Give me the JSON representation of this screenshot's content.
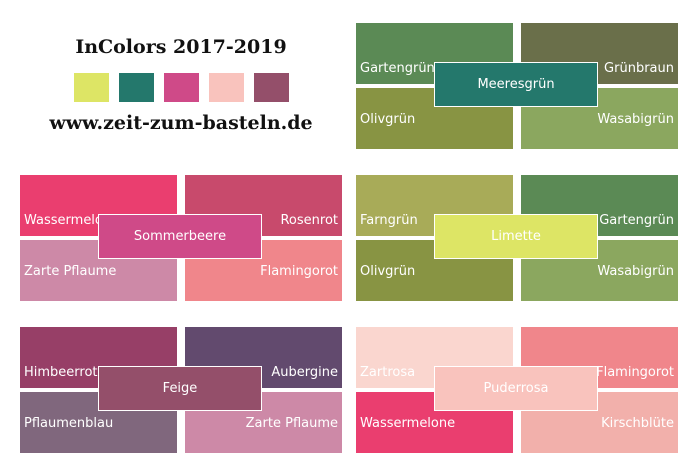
{
  "header": {
    "title": "InColors 2017-2019",
    "url": "www.zeit-zum-basteln.de",
    "swatches": [
      "#dde565",
      "#24786c",
      "#cf4a88",
      "#f9c3bd",
      "#944f6a"
    ]
  },
  "groups": [
    {
      "center": {
        "label": "Meeresgrün",
        "color": "#24786c"
      },
      "tiles": [
        {
          "label": "Gartengrün",
          "color": "#5b8a55"
        },
        {
          "label": "Grünbraun",
          "color": "#6a6f4a"
        },
        {
          "label": "Olivgrün",
          "color": "#889443"
        },
        {
          "label": "Wasabigrün",
          "color": "#8ba75f"
        }
      ]
    },
    {
      "center": {
        "label": "Sommerbeere",
        "color": "#cf4a88"
      },
      "tiles": [
        {
          "label": "Wassermelone",
          "color": "#ea3e6f"
        },
        {
          "label": "Rosenrot",
          "color": "#c84a6c"
        },
        {
          "label": "Zarte Pflaume",
          "color": "#cd89a7"
        },
        {
          "label": "Flamingorot",
          "color": "#f0868b"
        }
      ]
    },
    {
      "center": {
        "label": "Limette",
        "color": "#dde565"
      },
      "tiles": [
        {
          "label": "Farngrün",
          "color": "#a8ab58"
        },
        {
          "label": "Gartengrün",
          "color": "#5b8a55"
        },
        {
          "label": "Olivgrün",
          "color": "#889443"
        },
        {
          "label": "Wasabigrün",
          "color": "#8ba75f"
        }
      ]
    },
    {
      "center": {
        "label": "Feige",
        "color": "#944f6a"
      },
      "tiles": [
        {
          "label": "Himbeerrot",
          "color": "#973f67"
        },
        {
          "label": "Aubergine",
          "color": "#624a6e"
        },
        {
          "label": "Pflaumenblau",
          "color": "#80677d"
        },
        {
          "label": "Zarte Pflaume",
          "color": "#cd89a7"
        }
      ]
    },
    {
      "center": {
        "label": "Puderrosa",
        "color": "#f9c3bd"
      },
      "tiles": [
        {
          "label": "Zartrosa",
          "color": "#fad6cf"
        },
        {
          "label": "Flamingorot",
          "color": "#f0868b"
        },
        {
          "label": "Wassermelone",
          "color": "#ea3e6f"
        },
        {
          "label": "Kirschblüte",
          "color": "#f2b0ab"
        }
      ]
    }
  ]
}
